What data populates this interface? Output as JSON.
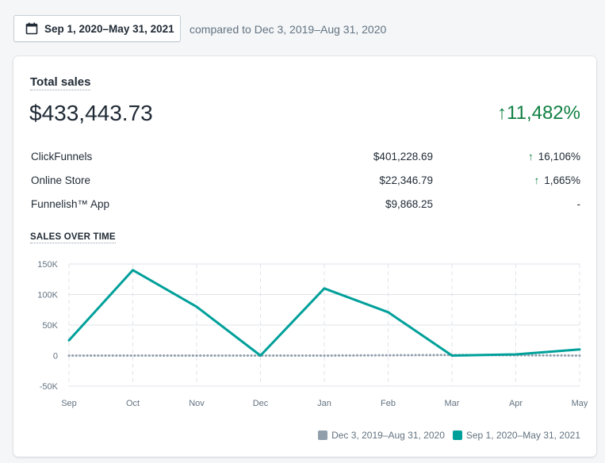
{
  "date_range": {
    "label": "Sep 1, 2020–May 31, 2021",
    "icon": "calendar-icon",
    "compare_text": "compared to Dec 3, 2019–Aug 31, 2020"
  },
  "total_sales": {
    "title": "Total sales",
    "value": "$433,443.73",
    "change": "11,482%",
    "change_color": "#108043"
  },
  "breakdown": [
    {
      "name": "ClickFunnels",
      "amount": "$401,228.69",
      "change": "16,106%",
      "trend": "up"
    },
    {
      "name": "Online Store",
      "amount": "$22,346.79",
      "change": "1,665%",
      "trend": "up"
    },
    {
      "name": "Funnelish™ App",
      "amount": "$9,868.25",
      "change": "-",
      "trend": "none"
    }
  ],
  "chart_data": {
    "type": "line",
    "title": "SALES OVER TIME",
    "categories": [
      "Sep",
      "Oct",
      "Nov",
      "Dec",
      "Jan",
      "Feb",
      "Mar",
      "Apr",
      "May"
    ],
    "y_ticks": [
      "150K",
      "100K",
      "50K",
      "0",
      "-50K"
    ],
    "ylim": [
      -50000,
      150000
    ],
    "grid": true,
    "legend_position": "bottom-right",
    "series": [
      {
        "name": "Dec 3, 2019–Aug 31, 2020",
        "color": "#919eab",
        "style": "dotted",
        "values": [
          0,
          0,
          0,
          0,
          0,
          500,
          1000,
          500,
          0
        ]
      },
      {
        "name": "Sep 1, 2020–May 31, 2021",
        "color": "#00a09a",
        "style": "solid",
        "values": [
          25000,
          140000,
          80000,
          0,
          110000,
          71000,
          0,
          2000,
          10000
        ]
      }
    ]
  }
}
